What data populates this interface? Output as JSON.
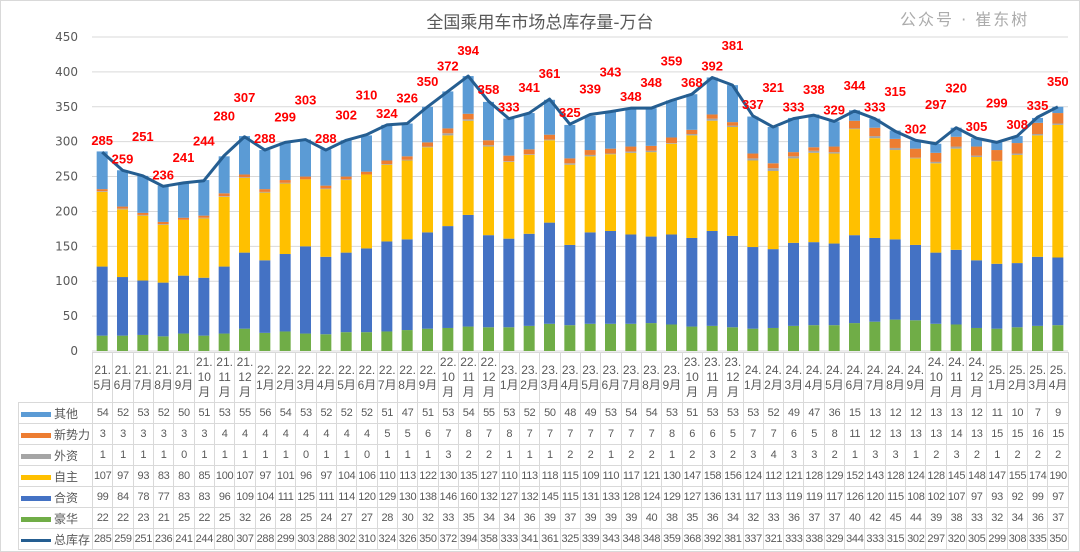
{
  "chart_data": {
    "type": "bar",
    "stacked": true,
    "title": "全国乘用车市场总库存量-万台",
    "xlabel": "",
    "ylabel": "",
    "ylim": [
      0,
      450
    ],
    "yticks": [
      0,
      50,
      100,
      150,
      200,
      250,
      300,
      350,
      400,
      450
    ],
    "grid": true,
    "legend": "data-table-bottom",
    "categories": [
      "21.5月",
      "21.6月",
      "21.7月",
      "21.8月",
      "21.9月",
      "21.10月",
      "21.11月",
      "21.12月",
      "22.1月",
      "22.2月",
      "22.3月",
      "22.4月",
      "22.5月",
      "22.6月",
      "22.7月",
      "22.8月",
      "22.9月",
      "22.10月",
      "22.11月",
      "22.12月",
      "23.1月",
      "23.2月",
      "23.3月",
      "23.4月",
      "23.5月",
      "23.6月",
      "23.7月",
      "23.8月",
      "23.9月",
      "23.10月",
      "23.11月",
      "23.12月",
      "24.1月",
      "24.2月",
      "24.3月",
      "24.4月",
      "24.5月",
      "24.6月",
      "24.7月",
      "24.8月",
      "24.9月",
      "24.10月",
      "24.11月",
      "24.12月",
      "25.1月",
      "25.2月",
      "25.3月",
      "25.4月"
    ],
    "series": [
      {
        "name": "其他",
        "color": "#5B9BD5",
        "kind": "bar",
        "values": [
          54,
          52,
          53,
          52,
          50,
          51,
          53,
          55,
          56,
          54,
          53,
          52,
          52,
          52,
          51,
          47,
          51,
          53,
          54,
          55,
          53,
          52,
          50,
          48,
          49,
          53,
          54,
          54,
          53,
          51,
          53,
          53,
          53,
          52,
          49,
          47,
          36,
          15,
          13,
          12,
          12,
          13,
          13,
          12,
          11,
          10,
          7,
          9
        ]
      },
      {
        "name": "新势力",
        "color": "#ED7D31",
        "kind": "bar",
        "values": [
          3,
          3,
          3,
          3,
          3,
          3,
          4,
          4,
          4,
          4,
          4,
          4,
          4,
          4,
          5,
          5,
          6,
          7,
          8,
          7,
          8,
          7,
          7,
          7,
          7,
          7,
          7,
          7,
          8,
          6,
          6,
          5,
          7,
          7,
          6,
          5,
          8,
          11,
          12,
          13,
          13,
          13,
          14,
          13,
          15,
          15,
          16,
          15
        ]
      },
      {
        "name": "外资",
        "color": "#A5A5A5",
        "kind": "bar",
        "values": [
          1,
          1,
          1,
          1,
          0,
          1,
          1,
          1,
          1,
          1,
          0,
          1,
          1,
          0,
          1,
          1,
          1,
          3,
          2,
          2,
          1,
          1,
          1,
          2,
          2,
          1,
          2,
          2,
          1,
          2,
          3,
          2,
          3,
          4,
          3,
          3,
          2,
          1,
          3,
          3,
          1,
          2,
          3,
          2,
          1,
          2,
          2,
          2
        ]
      },
      {
        "name": "自主",
        "color": "#FFC000",
        "kind": "bar",
        "values": [
          107,
          97,
          93,
          83,
          80,
          85,
          100,
          107,
          97,
          101,
          96,
          97,
          104,
          106,
          110,
          113,
          122,
          130,
          135,
          127,
          110,
          113,
          118,
          115,
          109,
          110,
          117,
          121,
          130,
          147,
          158,
          156,
          124,
          112,
          121,
          128,
          129,
          152,
          143,
          128,
          124,
          128,
          145,
          148,
          147,
          155,
          174,
          190
        ]
      },
      {
        "name": "合资",
        "color": "#4472C4",
        "kind": "bar",
        "values": [
          99,
          84,
          78,
          77,
          83,
          83,
          96,
          109,
          104,
          111,
          125,
          111,
          114,
          120,
          129,
          130,
          138,
          146,
          160,
          132,
          127,
          132,
          145,
          115,
          131,
          133,
          128,
          124,
          129,
          127,
          136,
          131,
          117,
          113,
          119,
          119,
          117,
          126,
          120,
          115,
          108,
          102,
          107,
          97,
          93,
          92,
          99,
          97
        ]
      },
      {
        "name": "豪华",
        "color": "#70AD47",
        "kind": "bar",
        "values": [
          22,
          22,
          23,
          21,
          25,
          22,
          25,
          32,
          26,
          28,
          25,
          24,
          27,
          27,
          28,
          30,
          32,
          33,
          35,
          34,
          34,
          36,
          39,
          37,
          39,
          39,
          39,
          40,
          38,
          35,
          36,
          34,
          32,
          33,
          36,
          37,
          37,
          40,
          42,
          45,
          44,
          39,
          38,
          33,
          32,
          34,
          36,
          37
        ]
      },
      {
        "name": "总库存",
        "color": "#255E91",
        "kind": "line",
        "label_color": "#FF0000",
        "values": [
          285,
          259,
          251,
          236,
          241,
          244,
          280,
          307,
          288,
          299,
          303,
          288,
          302,
          310,
          324,
          326,
          350,
          372,
          394,
          358,
          333,
          341,
          361,
          325,
          339,
          343,
          348,
          348,
          359,
          368,
          392,
          381,
          337,
          321,
          333,
          338,
          329,
          344,
          333,
          315,
          302,
          297,
          320,
          305,
          299,
          308,
          335,
          350
        ]
      }
    ],
    "stack_order_bottom_to_top": [
      "豪华",
      "合资",
      "自主",
      "外资",
      "新势力",
      "其他"
    ]
  },
  "watermark": "公众号 · 崔东树"
}
